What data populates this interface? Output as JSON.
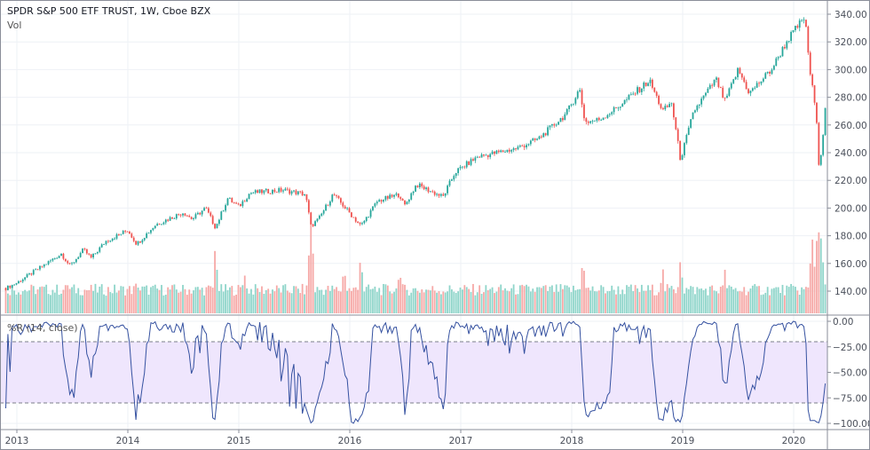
{
  "header": {
    "title": "SPDR S&P 500 ETF TRUST, 1W, Cboe BZX",
    "volume_label": "Vol",
    "indicator_label": "%R (14, close)"
  },
  "colors": {
    "up": "#26a69a",
    "down": "#ef5350",
    "vol_up": "#8fd5ca",
    "vol_down": "#f6a9a7",
    "wr_line": "#3551a0",
    "wr_band": "#efe6fd",
    "grid": "#eef1f6",
    "axis": "#5d606b"
  },
  "chart_data": [
    {
      "type": "candlestick",
      "title": "SPDR S&P 500 ETF TRUST, 1W, Cboe BZX",
      "interval": "1W",
      "x_ticks": [
        "2013",
        "2014",
        "2015",
        "2016",
        "2017",
        "2018",
        "2019",
        "2020"
      ],
      "y_ticks": [
        "340.00",
        "320.00",
        "300.00",
        "280.00",
        "260.00",
        "240.00",
        "220.00",
        "200.00",
        "180.00",
        "160.00",
        "140.00"
      ],
      "ylim": [
        128,
        345
      ],
      "x_range_years": [
        2012.9,
        2020.29
      ],
      "close_anchors": [
        [
          2012.9,
          142
        ],
        [
          2013.0,
          146
        ],
        [
          2013.4,
          167
        ],
        [
          2013.48,
          158
        ],
        [
          2013.6,
          170
        ],
        [
          2013.67,
          164
        ],
        [
          2013.8,
          176
        ],
        [
          2014.0,
          184
        ],
        [
          2014.08,
          174
        ],
        [
          2014.25,
          188
        ],
        [
          2014.5,
          197
        ],
        [
          2014.58,
          192
        ],
        [
          2014.7,
          200
        ],
        [
          2014.79,
          186
        ],
        [
          2014.9,
          207
        ],
        [
          2015.0,
          201
        ],
        [
          2015.1,
          211
        ],
        [
          2015.4,
          213
        ],
        [
          2015.6,
          210
        ],
        [
          2015.65,
          187
        ],
        [
          2015.72,
          192
        ],
        [
          2015.85,
          210
        ],
        [
          2015.95,
          201
        ],
        [
          2016.1,
          187
        ],
        [
          2016.25,
          205
        ],
        [
          2016.45,
          210
        ],
        [
          2016.49,
          201
        ],
        [
          2016.6,
          217
        ],
        [
          2016.84,
          208
        ],
        [
          2016.95,
          226
        ],
        [
          2017.15,
          237
        ],
        [
          2017.5,
          243
        ],
        [
          2017.7,
          250
        ],
        [
          2017.95,
          268
        ],
        [
          2018.07,
          286
        ],
        [
          2018.12,
          262
        ],
        [
          2018.25,
          264
        ],
        [
          2018.4,
          272
        ],
        [
          2018.7,
          292
        ],
        [
          2018.82,
          270
        ],
        [
          2018.9,
          276
        ],
        [
          2018.98,
          235
        ],
        [
          2019.1,
          270
        ],
        [
          2019.3,
          293
        ],
        [
          2019.38,
          277
        ],
        [
          2019.5,
          300
        ],
        [
          2019.6,
          283
        ],
        [
          2019.8,
          300
        ],
        [
          2019.95,
          322
        ],
        [
          2020.1,
          338
        ],
        [
          2020.15,
          297
        ],
        [
          2020.2,
          270
        ],
        [
          2020.23,
          229
        ],
        [
          2020.28,
          264
        ],
        [
          2020.29,
          286
        ]
      ]
    },
    {
      "type": "bar",
      "title": "Vol",
      "unit": "millions of shares (approx.)",
      "baseline": 450,
      "spikes": [
        [
          2013.45,
          650
        ],
        [
          2014.08,
          700
        ],
        [
          2014.79,
          1250
        ],
        [
          2015.05,
          800
        ],
        [
          2015.65,
          1900
        ],
        [
          2015.95,
          900
        ],
        [
          2016.1,
          1100
        ],
        [
          2016.45,
          800
        ],
        [
          2018.1,
          1050
        ],
        [
          2018.82,
          900
        ],
        [
          2018.98,
          1000
        ],
        [
          2019.38,
          850
        ],
        [
          2020.17,
          1650
        ],
        [
          2020.22,
          1900
        ],
        [
          2020.25,
          1500
        ]
      ]
    },
    {
      "type": "line",
      "title": "%R (14, close)",
      "period": 14,
      "y_ticks": [
        "0.00",
        "−25.00",
        "−50.00",
        "−75.00",
        "−100.00"
      ],
      "ylim": [
        -100,
        0
      ],
      "bands": [
        -20,
        -80
      ]
    }
  ]
}
